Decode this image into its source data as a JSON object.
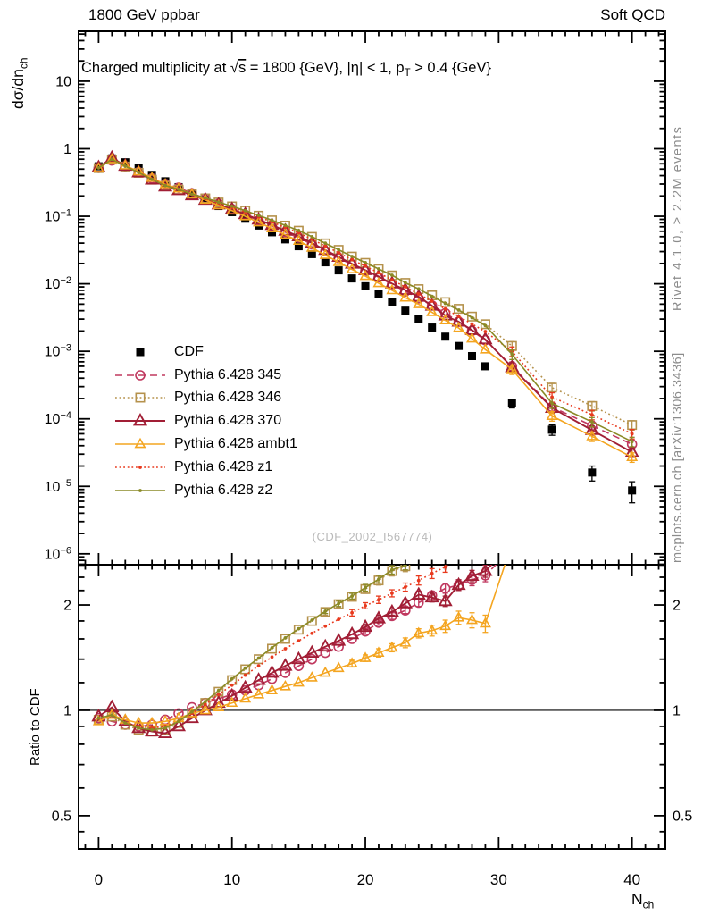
{
  "chart_data": {
    "type": "line",
    "title": "Charged multiplicity at √s = 1800 {GeV}, |η| < 1, p_T > 0.4 {GeV}",
    "title_parts": {
      "pre": "Charged multiplicity at ",
      "sqrt_sym": "√",
      "sqrt_arg": "s",
      "mid": " = 1800 {GeV}, |η| < 1, p",
      "sub": "T",
      "post": " > 0.4 {GeV}"
    },
    "texts": {
      "header_left": "1800 GeV ppbar",
      "header_right": "Soft QCD",
      "watermark": "(CDF_2002_I567774)",
      "rivet_note": "Rivet 4.1.0, ≥ 2.2M events",
      "mcplots_note": "mcplots.cern.ch [arXiv:1306.3436]"
    },
    "axes": {
      "x": {
        "min": -1.5,
        "max": 42.5,
        "ticks": [
          0,
          10,
          20,
          30,
          40
        ],
        "tick_labels": [
          "0",
          "10",
          "20",
          "30",
          "40"
        ],
        "minor_step": 1,
        "label_main": "N",
        "label_sub": "ch"
      },
      "y_main": {
        "scale": "log",
        "min": 6.9e-07,
        "max": 55,
        "tick_exponents": [
          1,
          0,
          -1,
          -2,
          -3,
          -4,
          -5,
          -6
        ],
        "tick_labels": [
          "10",
          "1",
          "10⁻¹",
          "10⁻²",
          "10⁻³",
          "10⁻⁴",
          "10⁻⁵",
          "10⁻⁶"
        ],
        "label_main": "dσ/dn",
        "label_sub": "ch"
      },
      "y_ratio": {
        "scale": "log",
        "min": 0.402,
        "max": 2.606,
        "ticks": [
          0.5,
          1,
          2
        ],
        "tick_labels": [
          "0.5",
          "1",
          "2"
        ],
        "minor_ticks": [
          0.45,
          0.6,
          0.7,
          0.8,
          0.9,
          1.2,
          1.4,
          1.6,
          1.8,
          2.2,
          2.4,
          2.6
        ],
        "label": "Ratio to CDF",
        "reference_line": 1
      }
    },
    "legend": {
      "position": "upper-left-inside",
      "items_order": [
        "cdf",
        "p345",
        "p346",
        "p370",
        "ambt1",
        "z1",
        "z2"
      ]
    },
    "tail_err_rel": 0.16,
    "x": [
      0,
      1,
      2,
      3,
      4,
      5,
      6,
      7,
      8,
      9,
      10,
      11,
      12,
      13,
      14,
      15,
      16,
      17,
      18,
      19,
      20,
      21,
      22,
      23,
      24,
      25,
      26,
      27,
      28,
      29,
      31,
      34,
      37,
      40
    ],
    "cdf": {
      "id": "cdf",
      "label": "CDF",
      "color": "#000000",
      "marker": "filled-square",
      "line": "none",
      "values": [
        0.55,
        0.72,
        0.63,
        0.52,
        0.41,
        0.33,
        0.27,
        0.215,
        0.175,
        0.142,
        0.115,
        0.092,
        0.073,
        0.058,
        0.0455,
        0.036,
        0.0275,
        0.0208,
        0.0158,
        0.012,
        0.0092,
        0.007,
        0.0053,
        0.004,
        0.003,
        0.00225,
        0.00165,
        0.0012,
        0.00085,
        0.0006,
        0.00017,
        6.9e-05,
        1.6e-05,
        8.7e-06
      ],
      "err": [
        0,
        0,
        0,
        0,
        0,
        0,
        0,
        0,
        0,
        0,
        0,
        0,
        0,
        0,
        0,
        0,
        0,
        0,
        0,
        0,
        0,
        0,
        0,
        0,
        0,
        0,
        0,
        0,
        0,
        0,
        2.5e-05,
        1.2e-05,
        4e-06,
        3e-06
      ]
    },
    "series": [
      {
        "id": "p345",
        "label": "Pythia 6.428 345",
        "color": "#c0385f",
        "line": "dashed",
        "marker": "open-circle",
        "values": [
          0.52,
          0.67,
          0.55,
          0.45,
          0.364,
          0.301,
          0.265,
          0.219,
          0.184,
          0.153,
          0.128,
          0.105,
          0.0861,
          0.0713,
          0.0582,
          0.0482,
          0.0385,
          0.0304,
          0.024,
          0.0192,
          0.0155,
          0.0125,
          0.00986,
          0.00772,
          0.00609,
          0.00479,
          0.00368,
          0.00274,
          0.00201,
          0.00146,
          0.0006,
          0.00015,
          7.9e-05,
          4.2e-05
        ],
        "ratio": [
          0.95,
          0.93,
          0.91,
          0.9,
          0.91,
          0.94,
          0.98,
          1.02,
          1.05,
          1.08,
          1.11,
          1.14,
          1.18,
          1.23,
          1.28,
          1.34,
          1.4,
          1.46,
          1.52,
          1.6,
          1.68,
          1.78,
          1.86,
          1.93,
          2.03,
          2.13,
          2.23,
          2.28,
          2.36,
          2.43,
          2.9
        ],
        "ratio_err": [
          0,
          0,
          0,
          0,
          0,
          0,
          0,
          0,
          0,
          0,
          0,
          0,
          0,
          0,
          0,
          0,
          0,
          0,
          0,
          0,
          0.03,
          0.03,
          0.04,
          0.04,
          0.05,
          0.06,
          0.07,
          0.08,
          0.09,
          0.1,
          0
        ]
      },
      {
        "id": "p346",
        "label": "Pythia 6.428 346",
        "color": "#b5924c",
        "line": "dotted",
        "marker": "open-square",
        "values": [
          0.517,
          0.691,
          0.546,
          0.44,
          0.348,
          0.282,
          0.248,
          0.211,
          0.184,
          0.16,
          0.14,
          0.121,
          0.102,
          0.087,
          0.0728,
          0.0612,
          0.0495,
          0.0397,
          0.0318,
          0.0253,
          0.0204,
          0.0165,
          0.0133,
          0.0103,
          0.00834,
          0.00675,
          0.00536,
          0.00426,
          0.00327,
          0.00252,
          0.0012,
          0.00029,
          0.000155,
          8.1e-05
        ],
        "ratio": [
          0.94,
          0.96,
          0.91,
          0.88,
          0.87,
          0.88,
          0.92,
          0.98,
          1.05,
          1.13,
          1.22,
          1.31,
          1.4,
          1.5,
          1.6,
          1.7,
          1.8,
          1.91,
          2.01,
          2.11,
          2.22,
          2.35,
          2.5,
          2.58,
          2.78
        ],
        "ratio_err": [
          0,
          0,
          0,
          0,
          0,
          0,
          0,
          0,
          0,
          0,
          0,
          0,
          0,
          0,
          0,
          0,
          0,
          0.04,
          0.04,
          0.05,
          0.06,
          0.07,
          0.08,
          0.09,
          0.1
        ]
      },
      {
        "id": "p370",
        "label": "Pythia 6.428 370",
        "color": "#a11e35",
        "line": "solid",
        "marker": "open-triangle-large",
        "values": [
          0.528,
          0.734,
          0.558,
          0.445,
          0.348,
          0.275,
          0.243,
          0.204,
          0.175,
          0.149,
          0.127,
          0.107,
          0.0891,
          0.0742,
          0.061,
          0.0504,
          0.0402,
          0.0316,
          0.025,
          0.0198,
          0.0159,
          0.0128,
          0.0101,
          0.00808,
          0.00642,
          0.00473,
          0.00338,
          0.00274,
          0.00206,
          0.0015,
          0.00058,
          0.000145,
          6.8e-05,
          3.2e-05
        ],
        "ratio": [
          0.96,
          1.02,
          0.93,
          0.89,
          0.87,
          0.86,
          0.9,
          0.95,
          1.0,
          1.05,
          1.1,
          1.16,
          1.22,
          1.28,
          1.34,
          1.4,
          1.46,
          1.52,
          1.58,
          1.65,
          1.73,
          1.83,
          1.91,
          2.02,
          2.14,
          2.1,
          2.05,
          2.28,
          2.42,
          2.5,
          3.0
        ],
        "ratio_err": [
          0,
          0,
          0,
          0,
          0,
          0,
          0,
          0,
          0,
          0,
          0,
          0,
          0,
          0,
          0,
          0,
          0,
          0,
          0,
          0,
          0.03,
          0.04,
          0.04,
          0.05,
          0.05,
          0.06,
          0.07,
          0.08,
          0.09,
          0.1,
          0
        ]
      },
      {
        "id": "ambt1",
        "label": "Pythia 6.428 ambt1",
        "color": "#f4a520",
        "line": "solid",
        "marker": "open-triangle",
        "values": [
          0.512,
          0.698,
          0.564,
          0.46,
          0.368,
          0.298,
          0.257,
          0.211,
          0.175,
          0.145,
          0.121,
          0.0994,
          0.081,
          0.0661,
          0.0532,
          0.0432,
          0.0341,
          0.0266,
          0.0209,
          0.0163,
          0.013,
          0.0102,
          0.008,
          0.00624,
          0.00498,
          0.0038,
          0.00287,
          0.00221,
          0.00154,
          0.00106,
          0.00054,
          0.00011,
          5.5e-05,
          2.7e-05
        ],
        "ratio": [
          0.93,
          0.97,
          0.94,
          0.92,
          0.92,
          0.93,
          0.95,
          0.98,
          1.0,
          1.02,
          1.05,
          1.08,
          1.11,
          1.14,
          1.17,
          1.2,
          1.24,
          1.28,
          1.32,
          1.36,
          1.41,
          1.46,
          1.51,
          1.56,
          1.66,
          1.69,
          1.74,
          1.84,
          1.81,
          1.77,
          3.0
        ],
        "ratio_err": [
          0,
          0,
          0,
          0,
          0,
          0,
          0,
          0,
          0,
          0,
          0,
          0,
          0,
          0,
          0,
          0,
          0,
          0,
          0,
          0.03,
          0.03,
          0.04,
          0.04,
          0.05,
          0.05,
          0.06,
          0.07,
          0.08,
          0.09,
          0.1,
          0
        ]
      },
      {
        "id": "z1",
        "label": "Pythia 6.428 z1",
        "color": "#e8391d",
        "line": "dotted",
        "marker": "filled-dot",
        "values": [
          0.522,
          0.698,
          0.552,
          0.45,
          0.356,
          0.288,
          0.251,
          0.211,
          0.182,
          0.158,
          0.136,
          0.116,
          0.0978,
          0.0824,
          0.0683,
          0.0569,
          0.0457,
          0.0362,
          0.0288,
          0.0228,
          0.0183,
          0.0145,
          0.0114,
          0.009,
          0.00705,
          0.00554,
          0.00424,
          0.00329,
          0.00254,
          0.00196,
          0.001,
          0.00021,
          0.000115,
          6e-05
        ],
        "ratio": [
          0.95,
          0.97,
          0.92,
          0.9,
          0.89,
          0.9,
          0.93,
          0.98,
          1.04,
          1.11,
          1.18,
          1.26,
          1.34,
          1.42,
          1.5,
          1.58,
          1.66,
          1.74,
          1.82,
          1.9,
          1.99,
          2.07,
          2.16,
          2.25,
          2.35,
          2.46,
          2.57,
          2.74
        ],
        "ratio_err": [
          0,
          0,
          0,
          0,
          0,
          0,
          0,
          0,
          0,
          0,
          0,
          0,
          0,
          0,
          0,
          0,
          0,
          0,
          0,
          0.04,
          0.04,
          0.05,
          0.05,
          0.06,
          0.07,
          0.08,
          0.09,
          0.1
        ]
      },
      {
        "id": "z2",
        "label": "Pythia 6.428 z2",
        "color": "#8a8a26",
        "line": "solid",
        "marker": "filled-dot",
        "values": [
          0.522,
          0.698,
          0.552,
          0.445,
          0.352,
          0.285,
          0.251,
          0.213,
          0.186,
          0.162,
          0.141,
          0.121,
          0.103,
          0.0876,
          0.0733,
          0.0616,
          0.0498,
          0.0399,
          0.0319,
          0.0254,
          0.0206,
          0.0166,
          0.0134,
          0.0104,
          0.0084,
          0.00653,
          0.00513,
          0.00408,
          0.00314,
          0.0024,
          0.0009,
          0.00017,
          9e-05,
          4.6e-05
        ],
        "ratio": [
          0.95,
          0.97,
          0.92,
          0.89,
          0.88,
          0.89,
          0.93,
          0.99,
          1.06,
          1.14,
          1.23,
          1.32,
          1.41,
          1.51,
          1.61,
          1.71,
          1.81,
          1.92,
          2.02,
          2.12,
          2.24,
          2.37,
          2.52,
          2.6,
          2.8
        ],
        "ratio_err": [
          0,
          0,
          0,
          0,
          0,
          0,
          0,
          0,
          0,
          0,
          0,
          0,
          0,
          0,
          0,
          0,
          0,
          0.03,
          0.04,
          0.04,
          0.05,
          0.06,
          0.07,
          0.08,
          0.09
        ]
      }
    ]
  }
}
